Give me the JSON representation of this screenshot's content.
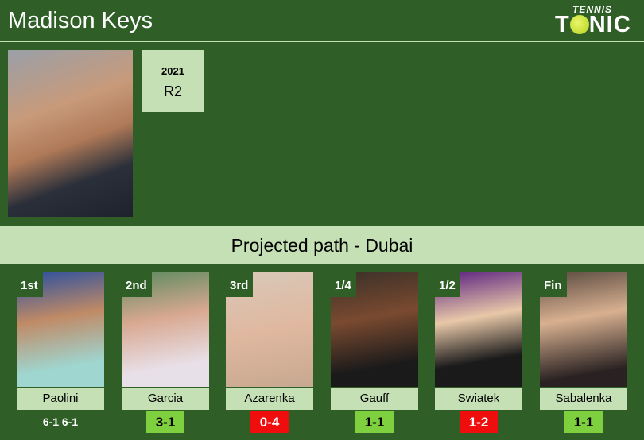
{
  "header": {
    "title": "Madison Keys",
    "logo": "TENNIS TONIC"
  },
  "player": {
    "year": "2021",
    "result": "R2"
  },
  "band": {
    "title": "Projected path - Dubai"
  },
  "colors": {
    "background": "#2f5f27",
    "light": "#c5e0b4",
    "win": "#7ed03f",
    "loss": "#f00d0d"
  },
  "path": [
    {
      "round": "1st",
      "name": "Paolini",
      "score": "6-1 6-1",
      "type": "plain"
    },
    {
      "round": "2nd",
      "name": "Garcia",
      "score": "3-1",
      "type": "win"
    },
    {
      "round": "3rd",
      "name": "Azarenka",
      "score": "0-4",
      "type": "loss"
    },
    {
      "round": "1/4",
      "name": "Gauff",
      "score": "1-1",
      "type": "win"
    },
    {
      "round": "1/2",
      "name": "Swiatek",
      "score": "1-2",
      "type": "loss"
    },
    {
      "round": "Fin",
      "name": "Sabalenka",
      "score": "1-1",
      "type": "win"
    }
  ]
}
